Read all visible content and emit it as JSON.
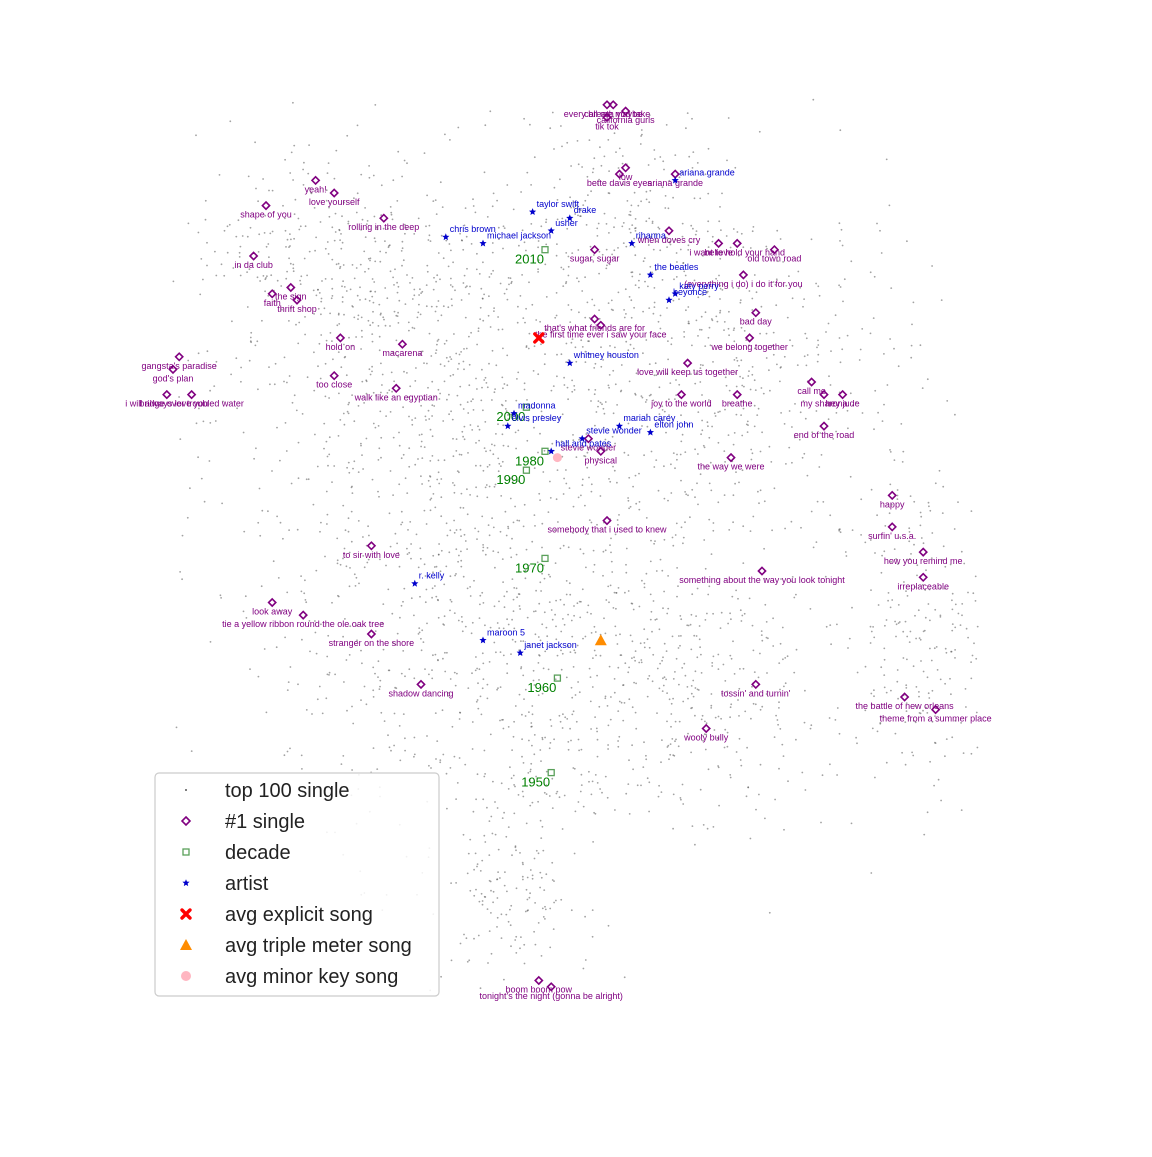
{
  "chart_data": {
    "type": "scatter",
    "title": "",
    "xlabel": "",
    "ylabel": "",
    "axes_visible": false,
    "grid": false,
    "legend": {
      "placement": "lower-left",
      "entries": [
        {
          "key": "top100",
          "label": "top 100 single"
        },
        {
          "key": "no1",
          "label": "#1 single"
        },
        {
          "key": "decade",
          "label": "decade"
        },
        {
          "key": "artist",
          "label": "artist"
        },
        {
          "key": "explicit",
          "label": "avg explicit song"
        },
        {
          "key": "triple",
          "label": "avg triple meter song"
        },
        {
          "key": "minor",
          "label": "avg minor key song"
        }
      ]
    },
    "colors": {
      "top100": "#555555",
      "no1": "#800080",
      "decade": "#5aa05a",
      "decade_label": "#008000",
      "artist": "#0000cc",
      "explicit": "#ff0000",
      "triple": "#ff8c00",
      "minor": "#ffb6c1"
    },
    "x": {
      "min": -100,
      "max": 100
    },
    "y": {
      "min": -100,
      "max": 100
    },
    "background_points": {
      "count": 3200,
      "note_shown_as": "small gray dots forming a map"
    },
    "no1_singles": [
      {
        "label": "every breath you take",
        "x": 5,
        "y": 64
      },
      {
        "label": "call me maybe",
        "x": 6,
        "y": 64
      },
      {
        "label": "california gurls",
        "x": 8,
        "y": 63
      },
      {
        "label": "tik tok",
        "x": 5,
        "y": 62
      },
      {
        "label": "low",
        "x": 8,
        "y": 54
      },
      {
        "label": "bette davis eyes",
        "x": 7,
        "y": 53
      },
      {
        "label": "ariana grande",
        "x": 16,
        "y": 53
      },
      {
        "label": "yeah!",
        "x": -42,
        "y": 52
      },
      {
        "label": "love yourself",
        "x": -39,
        "y": 50
      },
      {
        "label": "shape of you",
        "x": -50,
        "y": 48
      },
      {
        "label": "rolling in the deep",
        "x": -31,
        "y": 46
      },
      {
        "label": "when doves cry",
        "x": 15,
        "y": 44
      },
      {
        "label": "believe",
        "x": 23,
        "y": 42
      },
      {
        "label": "i want to hold your hand",
        "x": 26,
        "y": 42
      },
      {
        "label": "old town road",
        "x": 32,
        "y": 41
      },
      {
        "label": "sugar, sugar",
        "x": 3,
        "y": 41
      },
      {
        "label": "in da club",
        "x": -52,
        "y": 40
      },
      {
        "label": "(everything i do) i do it for you",
        "x": 27,
        "y": 37
      },
      {
        "label": "the sign",
        "x": -46,
        "y": 35
      },
      {
        "label": "faith",
        "x": -49,
        "y": 34
      },
      {
        "label": "thrift shop",
        "x": -45,
        "y": 33
      },
      {
        "label": "bad day",
        "x": 29,
        "y": 31
      },
      {
        "label": "that's what friends are for",
        "x": 3,
        "y": 30
      },
      {
        "label": "the first time ever i saw your face",
        "x": 4,
        "y": 29
      },
      {
        "label": "hold on",
        "x": -38,
        "y": 27
      },
      {
        "label": "we belong together",
        "x": 28,
        "y": 27
      },
      {
        "label": "macarena",
        "x": -28,
        "y": 26
      },
      {
        "label": "gangsta's paradise",
        "x": -64,
        "y": 24
      },
      {
        "label": "love will keep us together",
        "x": 18,
        "y": 23
      },
      {
        "label": "god's plan",
        "x": -65,
        "y": 22
      },
      {
        "label": "too close",
        "x": -39,
        "y": 21
      },
      {
        "label": "call me",
        "x": 38,
        "y": 20
      },
      {
        "label": "walk like an egyptian",
        "x": -29,
        "y": 19
      },
      {
        "label": "my sharona",
        "x": 40,
        "y": 18
      },
      {
        "label": "hey jude",
        "x": 43,
        "y": 18
      },
      {
        "label": "i will always love you",
        "x": -66,
        "y": 18
      },
      {
        "label": "bridge over troubled water",
        "x": -62,
        "y": 18
      },
      {
        "label": "joy to the world",
        "x": 17,
        "y": 18
      },
      {
        "label": "breathe",
        "x": 26,
        "y": 18
      },
      {
        "label": "end of the road",
        "x": 40,
        "y": 13
      },
      {
        "label": "stevie wonder",
        "x": 2,
        "y": 11
      },
      {
        "label": "physical",
        "x": 4,
        "y": 9
      },
      {
        "label": "the way we were",
        "x": 25,
        "y": 8
      },
      {
        "label": "happy",
        "x": 51,
        "y": 2
      },
      {
        "label": "somebody that i used to knew",
        "x": 5,
        "y": -2
      },
      {
        "label": "surfin' u.s.a.",
        "x": 51,
        "y": -3
      },
      {
        "label": "to sir with love",
        "x": -33,
        "y": -6
      },
      {
        "label": "how you remind me",
        "x": 56,
        "y": -7
      },
      {
        "label": "something about the way you look tonight",
        "x": 30,
        "y": -10
      },
      {
        "label": "irreplaceable",
        "x": 56,
        "y": -11
      },
      {
        "label": "look away",
        "x": -49,
        "y": -15
      },
      {
        "label": "tie a yellow ribbon round the ole oak tree",
        "x": -44,
        "y": -17
      },
      {
        "label": "stranger on the shore",
        "x": -33,
        "y": -20
      },
      {
        "label": "tossin' and turnin'",
        "x": 29,
        "y": -28
      },
      {
        "label": "shadow dancing",
        "x": -25,
        "y": -28
      },
      {
        "label": "the battle of new orleans",
        "x": 53,
        "y": -30
      },
      {
        "label": "theme from a summer place",
        "x": 58,
        "y": -32
      },
      {
        "label": "wooly bully",
        "x": 21,
        "y": -35
      },
      {
        "label": "boom boom pow",
        "x": -6,
        "y": -75
      },
      {
        "label": "tonight's the night (gonna be alright)",
        "x": -4,
        "y": -76
      }
    ],
    "decades": [
      {
        "label": "2010",
        "x": -5,
        "y": 41
      },
      {
        "label": "2000",
        "x": -8,
        "y": 16
      },
      {
        "label": "1980",
        "x": -5,
        "y": 9
      },
      {
        "label": "1990",
        "x": -8,
        "y": 6
      },
      {
        "label": "1970",
        "x": -5,
        "y": -8
      },
      {
        "label": "1960",
        "x": -3,
        "y": -27
      },
      {
        "label": "1950",
        "x": -4,
        "y": -42
      }
    ],
    "artists": [
      {
        "label": "ariana grande",
        "x": 16,
        "y": 52
      },
      {
        "label": "taylor swift",
        "x": -7,
        "y": 47
      },
      {
        "label": "drake",
        "x": -1,
        "y": 46
      },
      {
        "label": "usher",
        "x": -4,
        "y": 44
      },
      {
        "label": "chris brown",
        "x": -21,
        "y": 43
      },
      {
        "label": "michael jackson",
        "x": -15,
        "y": 42
      },
      {
        "label": "rihanna",
        "x": 9,
        "y": 42
      },
      {
        "label": "the beatles",
        "x": 12,
        "y": 37
      },
      {
        "label": "katy perry",
        "x": 16,
        "y": 34
      },
      {
        "label": "beyonce",
        "x": 15,
        "y": 33
      },
      {
        "label": "whitney houston",
        "x": -1,
        "y": 23
      },
      {
        "label": "madonna",
        "x": -10,
        "y": 15
      },
      {
        "label": "elvis presley",
        "x": -11,
        "y": 13
      },
      {
        "label": "mariah carey",
        "x": 7,
        "y": 13
      },
      {
        "label": "elton john",
        "x": 12,
        "y": 12
      },
      {
        "label": "stevie wonder",
        "x": 1,
        "y": 11
      },
      {
        "label": "hall and oates",
        "x": -4,
        "y": 9
      },
      {
        "label": "r. kelly",
        "x": -26,
        "y": -12
      },
      {
        "label": "maroon 5",
        "x": -15,
        "y": -21
      },
      {
        "label": "janet jackson",
        "x": -9,
        "y": -23
      }
    ],
    "averages": [
      {
        "key": "explicit",
        "x": -6,
        "y": 27
      },
      {
        "key": "triple",
        "x": 4,
        "y": -21
      },
      {
        "key": "minor",
        "x": -3,
        "y": 8
      }
    ]
  }
}
